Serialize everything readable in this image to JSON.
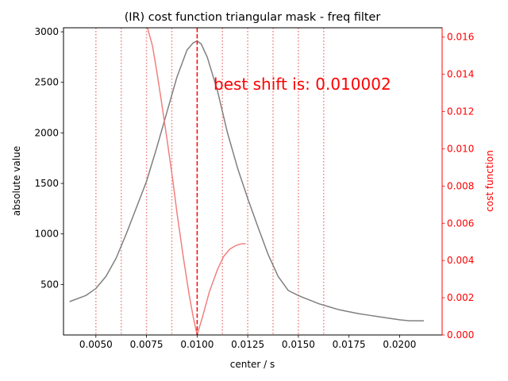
{
  "chart_data": {
    "type": "line",
    "title": "(IR) cost function triangular mask - freq filter",
    "xlabel": "center / s",
    "ylabel": "absolute value",
    "ylabel_right": "cost function",
    "xlim": [
      0.0034,
      0.0221
    ],
    "ylim": [
      0,
      3040
    ],
    "ylim_right": [
      0,
      0.0165
    ],
    "x_ticks": [
      0.005,
      0.0075,
      0.01,
      0.0125,
      0.015,
      0.0175,
      0.02
    ],
    "x_tick_labels": [
      "0.0050",
      "0.0075",
      "0.0100",
      "0.0125",
      "0.0150",
      "0.0175",
      "0.0200"
    ],
    "y_ticks": [
      500,
      1000,
      1500,
      2000,
      2500,
      3000
    ],
    "y_tick_labels": [
      "500",
      "1000",
      "1500",
      "2000",
      "2500",
      "3000"
    ],
    "y_ticks_right": [
      0,
      0.002,
      0.004,
      0.006,
      0.008,
      0.01,
      0.012,
      0.014,
      0.016
    ],
    "y_tick_labels_right": [
      "0.000",
      "0.002",
      "0.004",
      "0.006",
      "0.008",
      "0.010",
      "0.012",
      "0.014",
      "0.016"
    ],
    "grid": false,
    "annotation": "best shift is: 0.010002",
    "best_shift": 0.010002,
    "dotted_vlines": [
      0.005,
      0.00625,
      0.0075,
      0.00875,
      0.01125,
      0.0125,
      0.01375,
      0.015,
      0.01625
    ],
    "colors": {
      "absolute": "#808080",
      "cost": "#f08080",
      "dotted": "#f08080",
      "best": "#ff0000",
      "right_axis": "#ff0000"
    },
    "series": [
      {
        "axis": "left",
        "x": [
          0.0037,
          0.0045,
          0.005,
          0.0055,
          0.006,
          0.0065,
          0.007,
          0.0075,
          0.008,
          0.0085,
          0.009,
          0.0095,
          0.0098,
          0.01,
          0.0102,
          0.0105,
          0.011,
          0.0115,
          0.012,
          0.0125,
          0.013,
          0.0135,
          0.014,
          0.0145,
          0.015,
          0.0155,
          0.016,
          0.0165,
          0.017,
          0.0175,
          0.018,
          0.0185,
          0.019,
          0.0195,
          0.02,
          0.0205,
          0.0212
        ],
        "values": [
          330,
          390,
          460,
          580,
          760,
          1000,
          1260,
          1520,
          1850,
          2200,
          2550,
          2820,
          2890,
          2910,
          2880,
          2750,
          2420,
          2000,
          1650,
          1350,
          1070,
          800,
          580,
          440,
          390,
          350,
          310,
          280,
          250,
          230,
          210,
          195,
          180,
          165,
          150,
          140,
          140
        ]
      },
      {
        "axis": "right",
        "x": [
          0.0075,
          0.0078,
          0.008,
          0.0082,
          0.0085,
          0.0088,
          0.009,
          0.0093,
          0.0096,
          0.0098,
          0.01,
          0.0103,
          0.0106,
          0.011,
          0.0113,
          0.0116,
          0.0119,
          0.0122,
          0.0124
        ],
        "values": [
          0.0167,
          0.0155,
          0.0142,
          0.0128,
          0.0106,
          0.0083,
          0.0066,
          0.0043,
          0.0022,
          0.001,
          0.0,
          0.0011,
          0.0023,
          0.0035,
          0.0042,
          0.0046,
          0.0048,
          0.0049,
          0.0049
        ]
      }
    ]
  }
}
